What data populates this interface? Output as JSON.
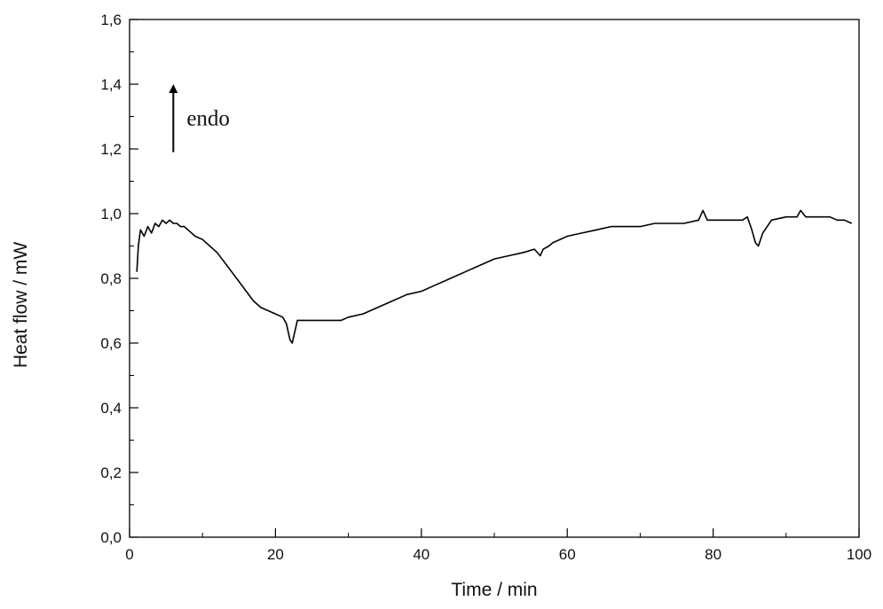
{
  "chart_data": {
    "type": "line",
    "xlabel": "Time / min",
    "ylabel": "Heat flow / mW",
    "xlim": [
      0,
      100
    ],
    "ylim": [
      0.0,
      1.6
    ],
    "x_ticks": [
      0,
      20,
      40,
      60,
      80,
      100
    ],
    "x_tick_labels": [
      "0",
      "20",
      "40",
      "60",
      "80",
      "100"
    ],
    "y_ticks": [
      0.0,
      0.2,
      0.4,
      0.6,
      0.8,
      1.0,
      1.2,
      1.4,
      1.6
    ],
    "y_tick_labels": [
      "0,0",
      "0,2",
      "0,4",
      "0,6",
      "0,8",
      "1,0",
      "1,2",
      "1,4",
      "1,6"
    ],
    "grid": false,
    "annotations": [
      {
        "text": "endo",
        "arrow": "up",
        "x": 6,
        "y_from": 1.19,
        "y_to": 1.4
      }
    ],
    "series": [
      {
        "color": "#000000",
        "x": [
          1.0,
          1.2,
          1.5,
          2.0,
          2.5,
          3.0,
          3.5,
          4.0,
          4.5,
          5.0,
          5.5,
          6.0,
          6.5,
          7.0,
          7.5,
          8.0,
          9.0,
          10.0,
          11.0,
          12.0,
          13.0,
          14.0,
          15.0,
          16.0,
          17.0,
          18.0,
          19.0,
          20.0,
          21.0,
          21.5,
          22.0,
          22.3,
          22.7,
          23.0,
          24.0,
          25.0,
          26.0,
          27.0,
          28.0,
          29.0,
          30.0,
          32.0,
          34.0,
          36.0,
          38.0,
          40.0,
          42.0,
          44.0,
          46.0,
          48.0,
          50.0,
          52.0,
          54.0,
          55.5,
          56.3,
          56.7,
          57.5,
          58.0,
          60.0,
          62.0,
          64.0,
          66.0,
          68.0,
          70.0,
          72.0,
          74.0,
          76.0,
          78.0,
          78.6,
          79.2,
          80.0,
          82.0,
          84.0,
          84.7,
          85.3,
          85.8,
          86.2,
          86.8,
          88.0,
          90.0,
          91.5,
          92.0,
          92.7,
          94.0,
          96.0,
          97.0,
          98.0,
          99.0
        ],
        "values": [
          0.82,
          0.9,
          0.95,
          0.93,
          0.96,
          0.94,
          0.97,
          0.96,
          0.98,
          0.97,
          0.98,
          0.97,
          0.97,
          0.96,
          0.96,
          0.95,
          0.93,
          0.92,
          0.9,
          0.88,
          0.85,
          0.82,
          0.79,
          0.76,
          0.73,
          0.71,
          0.7,
          0.69,
          0.68,
          0.66,
          0.61,
          0.6,
          0.64,
          0.67,
          0.67,
          0.67,
          0.67,
          0.67,
          0.67,
          0.67,
          0.68,
          0.69,
          0.71,
          0.73,
          0.75,
          0.76,
          0.78,
          0.8,
          0.82,
          0.84,
          0.86,
          0.87,
          0.88,
          0.89,
          0.87,
          0.89,
          0.9,
          0.91,
          0.93,
          0.94,
          0.95,
          0.96,
          0.96,
          0.96,
          0.97,
          0.97,
          0.97,
          0.98,
          1.01,
          0.98,
          0.98,
          0.98,
          0.98,
          0.99,
          0.95,
          0.91,
          0.9,
          0.94,
          0.98,
          0.99,
          0.99,
          1.01,
          0.99,
          0.99,
          0.99,
          0.98,
          0.98,
          0.97
        ]
      }
    ]
  }
}
